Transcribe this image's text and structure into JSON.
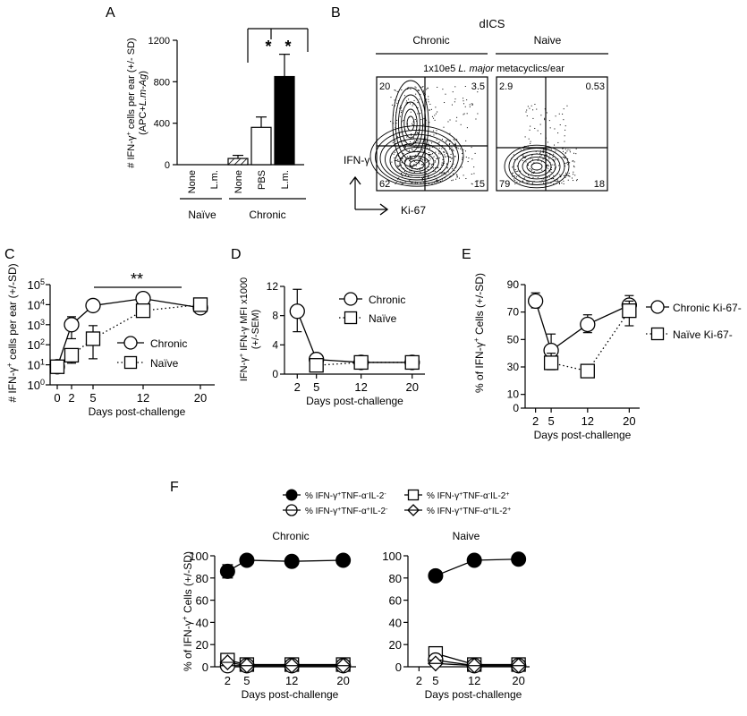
{
  "panel_letters": [
    "A",
    "B",
    "C",
    "D",
    "E",
    "F"
  ],
  "chart_data": [
    {
      "panel": "A",
      "type": "bar",
      "ylabel_lines": [
        "# IFN-γ⁺ cells per ear (+/- SD)",
        "(APC+L.m-Ag)"
      ],
      "ylim": [
        0,
        1200
      ],
      "yticks": [
        0,
        400,
        800,
        1200
      ],
      "categories": [
        "None",
        "L.m.",
        "None",
        "PBS",
        "L.m."
      ],
      "values": [
        0,
        0,
        60,
        360,
        850
      ],
      "errors": [
        0,
        0,
        30,
        100,
        215
      ],
      "fills": [
        "none",
        "none",
        "hatched",
        "white",
        "black"
      ],
      "groups": [
        {
          "label": "Naïve",
          "categories": [
            "None",
            "L.m."
          ]
        },
        {
          "label": "Chronic",
          "categories": [
            "None",
            "PBS",
            "L.m."
          ]
        }
      ],
      "significance": [
        {
          "from": "None (Chronic)",
          "to": "PBS",
          "label": "*"
        },
        {
          "from": "None (Chronic)",
          "to": "L.m.",
          "label": "*"
        }
      ]
    },
    {
      "panel": "B",
      "type": "flow-contour",
      "title": "dICS",
      "subtitle_prefix": "1x10e5 ",
      "subtitle_italic": "L. major",
      "subtitle_suffix": " metacyclics/ear",
      "yaxis_label": "IFN-γ",
      "xaxis_label": "Ki-67",
      "plots": [
        {
          "name": "Chronic",
          "quadrants": {
            "top_left": "20",
            "top_right": "3.5",
            "bottom_left": "62",
            "bottom_right": "15"
          }
        },
        {
          "name": "Naive",
          "quadrants": {
            "top_left": "2.9",
            "top_right": "0.53",
            "bottom_left": "79",
            "bottom_right": "18"
          }
        }
      ]
    },
    {
      "panel": "C",
      "type": "line",
      "yscale": "log",
      "ylabel": "# IFN-γ⁺ cells per ear (+/-SD)",
      "xlabel": "Days post-challenge",
      "ylim": [
        1,
        100000
      ],
      "yticks": [
        "10^0",
        "10^1",
        "10^2",
        "10^3",
        "10^4",
        "10^5"
      ],
      "xticks": [
        0,
        2,
        5,
        12,
        20
      ],
      "xlim": [
        -1,
        22
      ],
      "annotation": "**",
      "series": [
        {
          "name": "Chronic",
          "marker": "circle",
          "line": "solid",
          "x": [
            0,
            2,
            5,
            12,
            20
          ],
          "y": [
            8,
            1000,
            9000,
            20000,
            7000
          ],
          "err_hi": [
            12,
            2500,
            12000,
            35000,
            10000
          ],
          "err_lo": [
            5,
            200,
            7000,
            12000,
            5000
          ]
        },
        {
          "name": "Naïve",
          "marker": "square",
          "line": "dotted",
          "x": [
            0,
            2,
            5,
            12,
            20
          ],
          "y": [
            8,
            30,
            200,
            5000,
            10000
          ],
          "err_hi": [
            12,
            60,
            900,
            6000,
            14000
          ],
          "err_lo": [
            5,
            12,
            20,
            4000,
            7000
          ]
        }
      ]
    },
    {
      "panel": "D",
      "type": "line",
      "ylabel_lines": [
        "IFN-γ⁺ IFN-γ MFI x1000",
        "(+/-SEM)"
      ],
      "xlabel": "Days post-challenge",
      "ylim": [
        0,
        12
      ],
      "yticks": [
        0,
        4,
        8,
        12
      ],
      "xticks": [
        2,
        5,
        12,
        20
      ],
      "xlim": [
        0,
        22
      ],
      "series": [
        {
          "name": "Chronic",
          "marker": "circle",
          "line": "solid",
          "x": [
            2,
            5,
            12,
            20
          ],
          "y": [
            8.6,
            2.0,
            1.6,
            1.6
          ],
          "err_hi": [
            11.6,
            2.3,
            1.9,
            1.9
          ],
          "err_lo": [
            5.8,
            1.8,
            1.4,
            1.4
          ]
        },
        {
          "name": "Naïve",
          "marker": "square",
          "line": "dotted",
          "x": [
            2,
            5,
            12,
            20
          ],
          "y": [
            null,
            1.2,
            1.6,
            1.6
          ],
          "err_hi": [
            null,
            1.4,
            1.8,
            1.8
          ],
          "err_lo": [
            null,
            1.0,
            1.4,
            1.4
          ]
        }
      ]
    },
    {
      "panel": "E",
      "type": "line",
      "ylabel": "% of IFN-γ⁺ Cells (+/-SD)",
      "xlabel": "Days post-challenge",
      "ylim": [
        0,
        90
      ],
      "yticks": [
        0,
        10,
        30,
        50,
        70,
        90
      ],
      "xticks": [
        2,
        5,
        12,
        20
      ],
      "xlim": [
        0,
        22
      ],
      "series": [
        {
          "name": "Chronic Ki-67-",
          "marker": "circle",
          "line": "solid",
          "x": [
            2,
            5,
            12,
            20
          ],
          "y": [
            78,
            42,
            61,
            75
          ],
          "err_hi": [
            84,
            54,
            68,
            82
          ],
          "err_lo": [
            73,
            32,
            55,
            68
          ]
        },
        {
          "name": "Naïve Ki-67-",
          "marker": "square",
          "line": "dotted",
          "x": [
            2,
            5,
            12,
            20
          ],
          "y": [
            null,
            33,
            27,
            71
          ],
          "err_hi": [
            null,
            40,
            29,
            78
          ],
          "err_lo": [
            null,
            28,
            25,
            60
          ]
        }
      ]
    },
    {
      "panel": "F",
      "type": "line",
      "ylabel": "% of IFN-γ⁺ Cells (+/-SD)",
      "xlabel": "Days post-challenge",
      "ylim": [
        0,
        100
      ],
      "yticks": [
        0,
        20,
        40,
        60,
        80,
        100
      ],
      "xticks": [
        2,
        5,
        12,
        20
      ],
      "legend": [
        {
          "marker": "filled-circle",
          "label": "% IFN-γ⁺TNF-α⁻IL-2⁻"
        },
        {
          "marker": "square",
          "label": "% IFN-γ⁺TNF-α⁻IL-2⁺"
        },
        {
          "marker": "circle-bar",
          "label": "% IFN-γ⁺TNF-α⁺IL-2⁻"
        },
        {
          "marker": "diamond-bar",
          "label": "% IFN-γ⁺TNF-α⁺IL-2⁺"
        }
      ],
      "subplots": [
        {
          "title": "Chronic",
          "series": [
            {
              "name": "% IFN-γ⁺TNF-α⁻IL-2⁻",
              "marker": "filled-circle",
              "x": [
                2,
                5,
                12,
                20
              ],
              "y": [
                86,
                96,
                95,
                96
              ],
              "err_hi": [
                92,
                97,
                96,
                97
              ],
              "err_lo": [
                80,
                95,
                94,
                95
              ]
            },
            {
              "name": "% IFN-γ⁺TNF-α⁻IL-2⁺",
              "marker": "square",
              "x": [
                2,
                5,
                12,
                20
              ],
              "y": [
                6,
                2,
                2,
                2
              ],
              "err_hi": [
                8,
                3,
                3,
                3
              ],
              "err_lo": [
                4,
                1,
                1,
                1
              ]
            },
            {
              "name": "% IFN-γ⁺TNF-α⁺IL-2⁻",
              "marker": "circle-bar",
              "x": [
                2,
                5,
                12,
                20
              ],
              "y": [
                1,
                1,
                1,
                1
              ]
            },
            {
              "name": "% IFN-γ⁺TNF-α⁺IL-2⁺",
              "marker": "diamond-bar",
              "x": [
                2,
                5,
                12,
                20
              ],
              "y": [
                4,
                1,
                1,
                1
              ]
            }
          ]
        },
        {
          "title": "Naive",
          "series": [
            {
              "name": "% IFN-γ⁺TNF-α⁻IL-2⁻",
              "marker": "filled-circle",
              "x": [
                5,
                12,
                20
              ],
              "y": [
                82,
                96,
                97
              ]
            },
            {
              "name": "% IFN-γ⁺TNF-α⁻IL-2⁺",
              "marker": "square",
              "x": [
                5,
                12,
                20
              ],
              "y": [
                12,
                2,
                2
              ]
            },
            {
              "name": "% IFN-γ⁺TNF-α⁺IL-2⁻",
              "marker": "circle-bar",
              "x": [
                5,
                12,
                20
              ],
              "y": [
                6,
                1,
                1
              ]
            },
            {
              "name": "% IFN-γ⁺TNF-α⁺IL-2⁺",
              "marker": "diamond-bar",
              "x": [
                5,
                12,
                20
              ],
              "y": [
                3,
                1,
                1
              ]
            }
          ]
        }
      ]
    }
  ]
}
